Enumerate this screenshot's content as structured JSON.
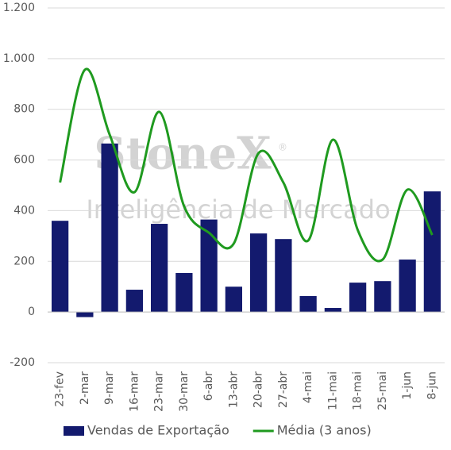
{
  "chart_data": {
    "type": "bar-line",
    "categories": [
      "23-fev",
      "2-mar",
      "9-mar",
      "16-mar",
      "23-mar",
      "30-mar",
      "6-abr",
      "13-abr",
      "20-abr",
      "27-abr",
      "4-mai",
      "11-mai",
      "18-mai",
      "25-mai",
      "1-jun",
      "8-jun"
    ],
    "series": [
      {
        "name": "Vendas de Exportação",
        "type": "bar",
        "color": "#131a6e",
        "values": [
          360,
          -20,
          665,
          88,
          348,
          154,
          365,
          100,
          310,
          288,
          63,
          16,
          116,
          122,
          207,
          476
        ]
      },
      {
        "name": "Média (3 anos)",
        "type": "line",
        "color": "#1f9a1f",
        "values": [
          511,
          956,
          700,
          473,
          790,
          417,
          313,
          270,
          627,
          511,
          282,
          680,
          323,
          207,
          483,
          304
        ]
      }
    ],
    "ylim": [
      -200,
      1200
    ],
    "yticks": [
      -200,
      0,
      200,
      400,
      600,
      800,
      {
        "value": 1000,
        "label": "1.000"
      },
      {
        "value": 1200,
        "label": "1.200"
      }
    ],
    "grid": true,
    "legend": "bottom",
    "watermark": {
      "brand": "StoneX",
      "mark": "®",
      "subtitle": "Inteligência de Mercado"
    }
  }
}
